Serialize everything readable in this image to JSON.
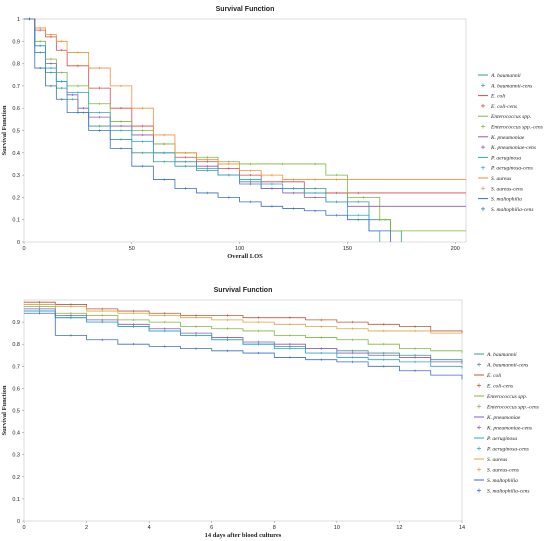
{
  "chart_data": [
    {
      "type": "line",
      "title": "Survival Function",
      "xlabel": "Overall LOS",
      "ylabel": "Survival Function",
      "xlim": [
        0,
        205
      ],
      "ylim": [
        0,
        1.0
      ],
      "xticks": [
        0,
        50,
        100,
        150,
        200
      ],
      "yticks": [
        0,
        0.1,
        0.2,
        0.3,
        0.4,
        0.5,
        0.6,
        0.7,
        0.8,
        0.9,
        1.0
      ],
      "legend_position": "right",
      "series": [
        {
          "name": "A. baumannii",
          "color": "#3a9a8c",
          "x": [
            0,
            5,
            10,
            15,
            20,
            25,
            30,
            40,
            50,
            60,
            70,
            80,
            90,
            100,
            110,
            120,
            130,
            140,
            150,
            160,
            170,
            175
          ],
          "y": [
            1.0,
            0.85,
            0.76,
            0.69,
            0.64,
            0.58,
            0.52,
            0.46,
            0.4,
            0.36,
            0.34,
            0.32,
            0.3,
            0.27,
            0.24,
            0.24,
            0.24,
            0.22,
            0.18,
            0.1,
            0.05,
            0.0
          ]
        },
        {
          "name": "E. coli",
          "color": "#d64a4a",
          "x": [
            0,
            5,
            10,
            15,
            20,
            30,
            40,
            50,
            60,
            70,
            80,
            90,
            100,
            110,
            130,
            150,
            160,
            205
          ],
          "y": [
            1.0,
            0.95,
            0.92,
            0.86,
            0.79,
            0.69,
            0.6,
            0.52,
            0.44,
            0.38,
            0.36,
            0.33,
            0.3,
            0.27,
            0.22,
            0.22,
            0.22,
            0.22
          ]
        },
        {
          "name": "Enterococcus spp.",
          "color": "#7db83e",
          "x": [
            0,
            5,
            10,
            15,
            20,
            30,
            40,
            50,
            60,
            70,
            80,
            90,
            100,
            110,
            130,
            140,
            150,
            165,
            170,
            205
          ],
          "y": [
            1.0,
            0.9,
            0.82,
            0.76,
            0.7,
            0.62,
            0.54,
            0.5,
            0.44,
            0.4,
            0.38,
            0.36,
            0.35,
            0.35,
            0.35,
            0.3,
            0.2,
            0.1,
            0.05,
            0.05
          ]
        },
        {
          "name": "K. pneumoniae",
          "color": "#8e5bb8",
          "x": [
            0,
            5,
            10,
            15,
            20,
            25,
            30,
            40,
            50,
            60,
            70,
            80,
            90,
            100,
            110,
            120,
            130,
            140,
            150,
            205
          ],
          "y": [
            1.0,
            0.88,
            0.8,
            0.72,
            0.66,
            0.6,
            0.56,
            0.52,
            0.48,
            0.4,
            0.36,
            0.34,
            0.3,
            0.26,
            0.24,
            0.22,
            0.2,
            0.18,
            0.16,
            0.16
          ]
        },
        {
          "name": "P. aeruginosa",
          "color": "#2aa8c8",
          "x": [
            0,
            5,
            10,
            15,
            20,
            30,
            40,
            50,
            60,
            70,
            80,
            90,
            100,
            110,
            120,
            130,
            140,
            150,
            160,
            165
          ],
          "y": [
            1.0,
            0.88,
            0.78,
            0.72,
            0.67,
            0.58,
            0.5,
            0.45,
            0.4,
            0.36,
            0.33,
            0.3,
            0.28,
            0.26,
            0.24,
            0.22,
            0.18,
            0.12,
            0.05,
            0.0
          ]
        },
        {
          "name": "S. aureus",
          "color": "#f0903a",
          "x": [
            0,
            5,
            10,
            15,
            20,
            30,
            40,
            50,
            60,
            70,
            80,
            90,
            100,
            110,
            120,
            130,
            140,
            150,
            205
          ],
          "y": [
            1.0,
            0.96,
            0.93,
            0.9,
            0.85,
            0.78,
            0.7,
            0.6,
            0.48,
            0.4,
            0.37,
            0.35,
            0.32,
            0.3,
            0.28,
            0.28,
            0.28,
            0.28,
            0.28
          ]
        },
        {
          "name": "S. maltophilia",
          "color": "#3a6fc4",
          "x": [
            0,
            5,
            10,
            15,
            20,
            30,
            40,
            50,
            60,
            70,
            80,
            90,
            100,
            110,
            120,
            130,
            140,
            150,
            160,
            170
          ],
          "y": [
            1.0,
            0.78,
            0.7,
            0.64,
            0.58,
            0.5,
            0.42,
            0.34,
            0.28,
            0.24,
            0.22,
            0.2,
            0.18,
            0.16,
            0.15,
            0.14,
            0.12,
            0.1,
            0.05,
            0.0
          ]
        }
      ],
      "legend_entries": [
        "A. baumannii",
        "A. baumannii-cens",
        "E. coli",
        "E. coli-cens",
        "Enterococcus spp.",
        "Enterococcus spp.-cens",
        "K. pneumoniae",
        "K. pneumoniae-cens",
        "P. aeruginosa",
        "P. aeruginosa-cens",
        "S. aureus",
        "S. aureus-cens",
        "S. maltophilia",
        "S. maltophilia-cens"
      ]
    },
    {
      "type": "line",
      "title": "Survival Function",
      "xlabel": "14 days after blood cultures",
      "ylabel": "Survival Function",
      "xlim": [
        0,
        14
      ],
      "ylim": [
        0,
        1.0
      ],
      "xticks": [
        0,
        2,
        4,
        6,
        8,
        10,
        12,
        14
      ],
      "yticks": [
        0,
        0.1,
        0.2,
        0.3,
        0.4,
        0.5,
        0.6,
        0.7,
        0.8,
        0.9
      ],
      "legend_position": "right",
      "series": [
        {
          "name": "A. baumannii",
          "color": "#3a9a8c",
          "x": [
            0,
            1,
            2,
            3,
            4,
            5,
            6,
            7,
            8,
            9,
            10,
            11,
            12,
            13,
            14
          ],
          "y": [
            0.95,
            0.92,
            0.9,
            0.88,
            0.86,
            0.84,
            0.82,
            0.8,
            0.79,
            0.78,
            0.77,
            0.76,
            0.75,
            0.73,
            0.72
          ]
        },
        {
          "name": "E. coli",
          "color": "#c0563a",
          "x": [
            0,
            1,
            2,
            3,
            4,
            5,
            6,
            7,
            8,
            9,
            10,
            11,
            12,
            13,
            14
          ],
          "y": [
            0.99,
            0.98,
            0.96,
            0.95,
            0.94,
            0.93,
            0.93,
            0.92,
            0.92,
            0.91,
            0.9,
            0.89,
            0.88,
            0.86,
            0.85
          ]
        },
        {
          "name": "Enterococcus spp.",
          "color": "#7db83e",
          "x": [
            0,
            1,
            2,
            3,
            4,
            5,
            6,
            7,
            8,
            9,
            10,
            11,
            12,
            13,
            14
          ],
          "y": [
            0.97,
            0.94,
            0.93,
            0.91,
            0.9,
            0.88,
            0.87,
            0.86,
            0.84,
            0.83,
            0.82,
            0.8,
            0.78,
            0.77,
            0.76
          ]
        },
        {
          "name": "K. pneumoniae",
          "color": "#8e5bb8",
          "x": [
            0,
            1,
            2,
            3,
            4,
            5,
            6,
            7,
            8,
            9,
            10,
            11,
            12,
            13,
            14
          ],
          "y": [
            0.96,
            0.93,
            0.91,
            0.89,
            0.87,
            0.85,
            0.83,
            0.81,
            0.8,
            0.78,
            0.76,
            0.75,
            0.74,
            0.72,
            0.71
          ]
        },
        {
          "name": "P. aeruginosa",
          "color": "#2aa8c8",
          "x": [
            0,
            1,
            2,
            3,
            4,
            5,
            6,
            7,
            8,
            9,
            10,
            11,
            12,
            13,
            14
          ],
          "y": [
            0.95,
            0.92,
            0.9,
            0.88,
            0.86,
            0.84,
            0.82,
            0.8,
            0.78,
            0.76,
            0.74,
            0.73,
            0.72,
            0.7,
            0.69
          ]
        },
        {
          "name": "S. aureus",
          "color": "#d9a441",
          "x": [
            0,
            1,
            2,
            3,
            4,
            5,
            6,
            7,
            8,
            9,
            10,
            11,
            12,
            13,
            14
          ],
          "y": [
            0.98,
            0.97,
            0.95,
            0.94,
            0.93,
            0.92,
            0.91,
            0.9,
            0.89,
            0.88,
            0.87,
            0.86,
            0.86,
            0.85,
            0.85
          ]
        },
        {
          "name": "S. maltophilia",
          "color": "#3a6fc4",
          "x": [
            0,
            1,
            2,
            3,
            4,
            5,
            6,
            7,
            8,
            9,
            10,
            11,
            12,
            13,
            14
          ],
          "y": [
            0.94,
            0.84,
            0.82,
            0.8,
            0.79,
            0.78,
            0.77,
            0.76,
            0.74,
            0.73,
            0.72,
            0.7,
            0.68,
            0.66,
            0.64
          ]
        }
      ],
      "legend_entries": [
        "A. baumannii",
        "A. baumannii-cens",
        "E. coli",
        "E. coli-cens",
        "Enterococcus spp.",
        "Enterococcus spp.-cens",
        "K. pneumoniae",
        "K. pneumoniae-cens",
        "P. aeruginosa",
        "P. aeruginosa-cens",
        "S. aureus",
        "S. aureus-cens",
        "S. maltophilia",
        "S. maltophilia-cens"
      ]
    }
  ]
}
